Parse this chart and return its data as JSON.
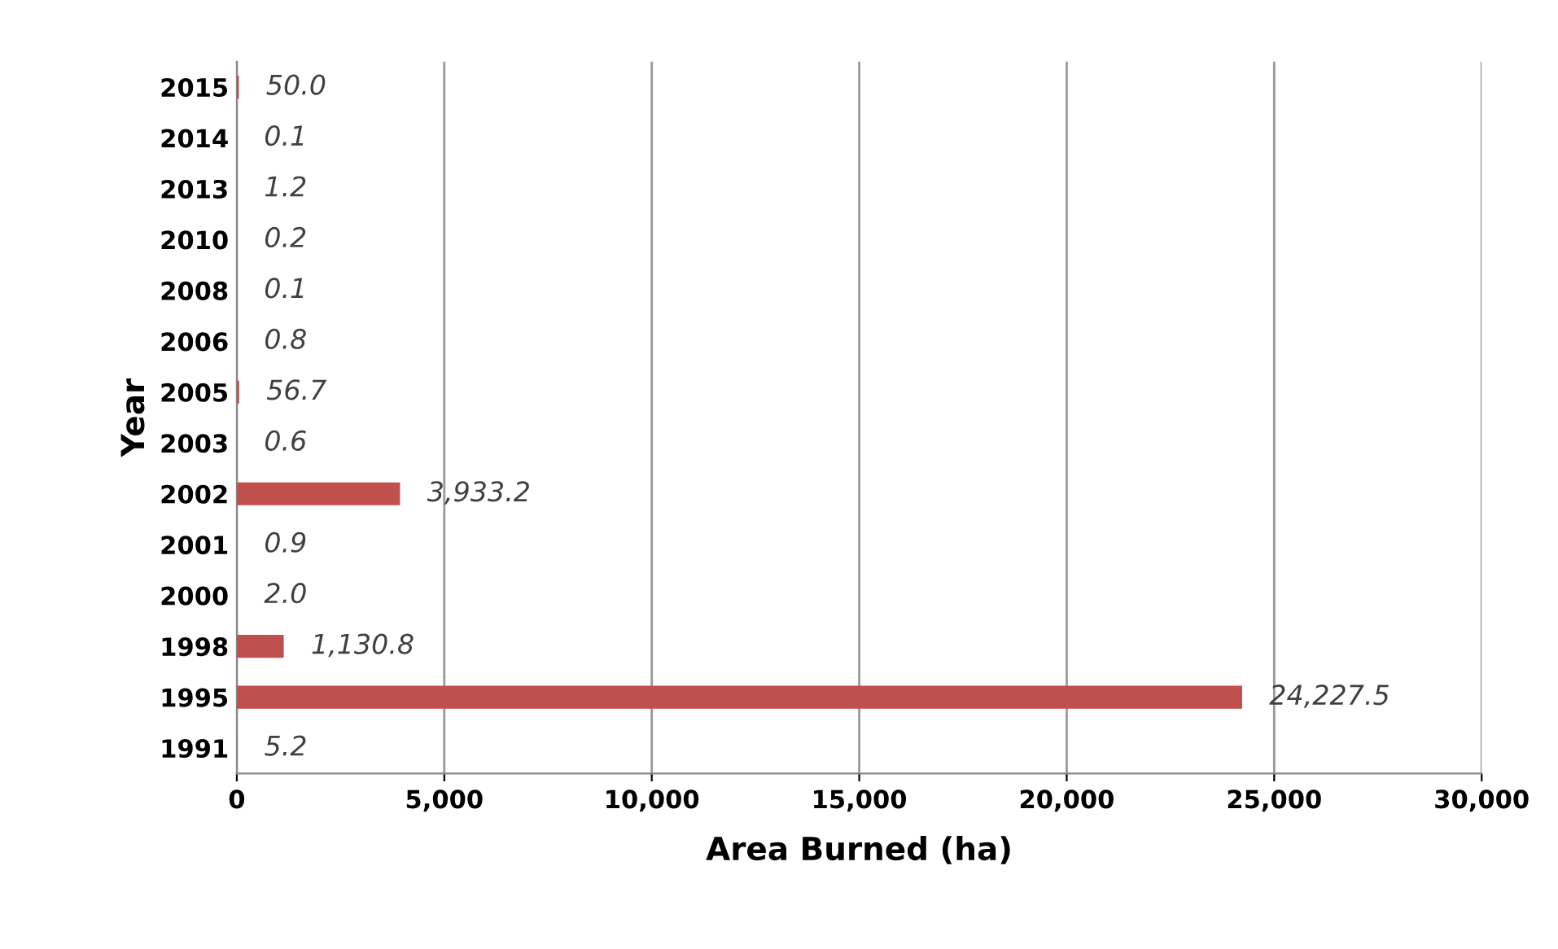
{
  "chart_data": {
    "type": "bar",
    "orientation": "horizontal",
    "xlabel": "Area Burned (ha)",
    "ylabel": "Year",
    "categories": [
      "2015",
      "2014",
      "2013",
      "2010",
      "2008",
      "2006",
      "2005",
      "2003",
      "2002",
      "2001",
      "2000",
      "1998",
      "1995",
      "1991"
    ],
    "values": [
      50.0,
      0.1,
      1.2,
      0.2,
      0.1,
      0.8,
      56.7,
      0.6,
      3933.2,
      0.9,
      2.0,
      1130.8,
      24227.5,
      5.2
    ],
    "value_labels": [
      "50.0",
      "0.1",
      "1.2",
      "0.2",
      "0.1",
      "0.8",
      "56.7",
      "0.6",
      "3,933.2",
      "0.9",
      "2.0",
      "1,130.8",
      "24,227.5",
      "5.2"
    ],
    "color": "#c0504d",
    "xlim": [
      0,
      30000
    ],
    "xticks": [
      {
        "value": 0,
        "label": "0"
      },
      {
        "value": 5000,
        "label": "5,000"
      },
      {
        "value": 10000,
        "label": "10,000"
      },
      {
        "value": 15000,
        "label": "15,000"
      },
      {
        "value": 20000,
        "label": "20,000"
      },
      {
        "value": 25000,
        "label": "25,000"
      },
      {
        "value": 30000,
        "label": "30,000"
      }
    ],
    "grid": "x",
    "legend": false
  }
}
